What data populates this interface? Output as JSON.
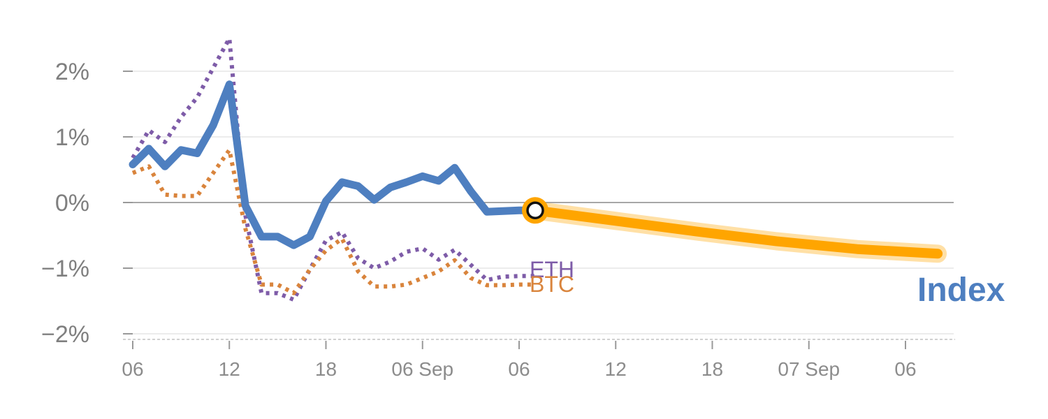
{
  "chart_data": {
    "type": "line",
    "title": "",
    "xlabel": "",
    "ylabel": "",
    "x_ticks": [
      "06",
      "12",
      "18",
      "06 Sep",
      "06",
      "12",
      "18",
      "07 Sep",
      "06"
    ],
    "y_ticks": [
      "2%",
      "1%",
      "0%",
      "−1%",
      "−2%"
    ],
    "y_tick_values": [
      2,
      1,
      0,
      -1,
      -2
    ],
    "ylim": [
      -2.1,
      2.5
    ],
    "xlim": [
      -0.25,
      50.75
    ],
    "zero_line": true,
    "grid": true,
    "colors": {
      "index": "#4e7fc0",
      "eth": "#7e5ca8",
      "btc": "#d9843c",
      "forecast": "#ffa500",
      "grid": "#e6e6e6",
      "zero": "#8a8a8a"
    },
    "series": [
      {
        "name": "Index",
        "style": "solid",
        "x": [
          0,
          1,
          2,
          3,
          4,
          5,
          6,
          7,
          8,
          9,
          10,
          11,
          12,
          13,
          14,
          15,
          16,
          17,
          18,
          19,
          20,
          21,
          22,
          23,
          24,
          25
        ],
        "values": [
          0.58,
          0.82,
          0.55,
          0.8,
          0.75,
          1.18,
          1.8,
          -0.05,
          -0.52,
          -0.52,
          -0.65,
          -0.52,
          0.02,
          0.31,
          0.25,
          0.04,
          0.23,
          0.31,
          0.4,
          0.33,
          0.53,
          0.17,
          -0.14,
          -0.13,
          -0.12,
          -0.12
        ]
      },
      {
        "name": "ETH",
        "style": "dotted",
        "x": [
          0,
          1,
          2,
          3,
          4,
          5,
          6,
          7,
          8,
          9,
          10,
          11,
          12,
          13,
          14,
          15,
          16,
          17,
          18,
          19,
          20,
          21,
          22,
          23,
          24,
          25
        ],
        "values": [
          0.68,
          1.1,
          0.92,
          1.3,
          1.6,
          2.05,
          2.5,
          -0.2,
          -1.38,
          -1.38,
          -1.48,
          -1.02,
          -0.58,
          -0.45,
          -0.85,
          -1.0,
          -0.9,
          -0.75,
          -0.7,
          -0.87,
          -0.72,
          -0.95,
          -1.18,
          -1.13,
          -1.12,
          -1.12
        ]
      },
      {
        "name": "BTC",
        "style": "dotted",
        "x": [
          0,
          1,
          2,
          3,
          4,
          5,
          6,
          7,
          8,
          9,
          10,
          11,
          12,
          13,
          14,
          15,
          16,
          17,
          18,
          19,
          20,
          21,
          22,
          23,
          24,
          25
        ],
        "values": [
          0.45,
          0.55,
          0.12,
          0.1,
          0.1,
          0.45,
          0.8,
          -0.4,
          -1.25,
          -1.25,
          -1.38,
          -1.02,
          -0.73,
          -0.55,
          -1.05,
          -1.28,
          -1.28,
          -1.25,
          -1.15,
          -1.05,
          -0.88,
          -1.15,
          -1.26,
          -1.26,
          -1.25,
          -1.25
        ]
      },
      {
        "name": "",
        "style": "forecast",
        "x": [
          25,
          30,
          35,
          40,
          45,
          50
        ],
        "values": [
          -0.12,
          -0.28,
          -0.44,
          -0.59,
          -0.71,
          -0.78
        ]
      }
    ],
    "labels": {
      "eth": "ETH",
      "btc": "BTC",
      "index": "Index"
    },
    "marker": {
      "x": 25,
      "value": -0.12
    }
  }
}
